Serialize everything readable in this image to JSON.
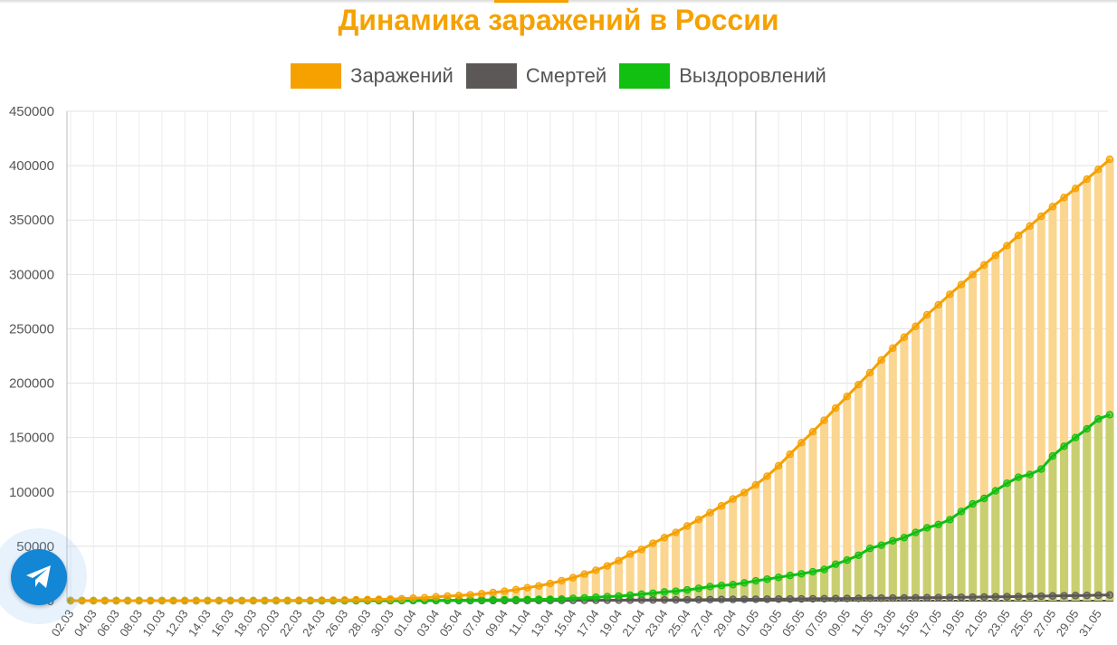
{
  "chart_data": {
    "type": "bar+line",
    "title": "Динамика заражений в России",
    "title_color": "#f5a100",
    "start": "02.03",
    "end": "31.05",
    "ylim": [
      0,
      450000
    ],
    "y_ticks": [
      "0",
      "50000",
      "100000",
      "150000",
      "200000",
      "250000",
      "300000",
      "350000",
      "400000",
      "450000"
    ],
    "x_tick_labels": [
      "02.03",
      "04.03",
      "06.03",
      "08.03",
      "10.03",
      "12.03",
      "14.03",
      "16.03",
      "18.03",
      "20.03",
      "22.03",
      "24.03",
      "26.03",
      "28.03",
      "30.03",
      "01.04",
      "03.04",
      "05.04",
      "07.04",
      "09.04",
      "11.04",
      "13.04",
      "15.04",
      "17.04",
      "19.04",
      "21.04",
      "23.04",
      "25.04",
      "27.04",
      "29.04",
      "01.05",
      "03.05",
      "05.05",
      "07.05",
      "09.05",
      "11.05",
      "13.05",
      "15.05",
      "17.05",
      "19.05",
      "21.05",
      "23.05",
      "25.05",
      "27.05",
      "29.05",
      "31.05"
    ],
    "grid": true,
    "legend_position": "top-center",
    "series": [
      {
        "name": "Заражений",
        "color": "#f5a100",
        "bar_fill": "#fbd690",
        "values": [
          3,
          3,
          4,
          4,
          7,
          10,
          13,
          17,
          17,
          20,
          28,
          34,
          45,
          59,
          63,
          93,
          114,
          147,
          199,
          253,
          306,
          367,
          438,
          495,
          658,
          840,
          1036,
          1264,
          1534,
          1836,
          2337,
          2777,
          3548,
          4149,
          4731,
          5389,
          6343,
          7497,
          8672,
          10131,
          11917,
          13584,
          15770,
          18328,
          21102,
          24490,
          27938,
          32008,
          36793,
          42853,
          47121,
          52763,
          57999,
          62773,
          68622,
          74588,
          80949,
          87147,
          93558,
          99399,
          106498,
          114431,
          124054,
          134687,
          145268,
          155370,
          165929,
          177160,
          187859,
          198676,
          209688,
          221344,
          232243,
          242271,
          252245,
          262843,
          272043,
          281752,
          290678,
          299941,
          308705,
          317554,
          326448,
          335882,
          344481,
          353427,
          362342,
          370680,
          379051,
          387623,
          396575,
          405843
        ],
        "show_bars": true
      },
      {
        "name": "Смертей",
        "color": "#5c5858",
        "values": [
          0,
          0,
          0,
          0,
          0,
          0,
          0,
          0,
          0,
          0,
          0,
          0,
          0,
          0,
          0,
          0,
          0,
          0,
          1,
          1,
          1,
          1,
          2,
          3,
          4,
          8,
          9,
          17,
          24,
          30,
          34,
          43,
          45,
          47,
          58,
          63,
          76,
          94,
          106,
          130,
          148,
          170,
          198,
          232,
          273,
          313,
          361,
          405,
          456,
          513,
          555,
          615,
          681,
          747,
          794,
          867,
          972,
          1073,
          1169,
          1222,
          1280,
          1356,
          1451,
          1537,
          1625,
          1723,
          1827,
          1915,
          2009,
          2116,
          2212,
          2305,
          2418,
          2537,
          2631,
          2722,
          2837,
          2972,
          3099,
          3249,
          3388,
          3541,
          3633,
          3807,
          3968,
          4142,
          4374,
          4555,
          4693,
          4855,
          5037,
          5215
        ]
      },
      {
        "name": "Выздоровлений",
        "color": "#11c011",
        "bar_fill": "#c9cf70",
        "values": [
          0,
          0,
          0,
          0,
          0,
          0,
          1,
          2,
          2,
          2,
          3,
          3,
          3,
          3,
          4,
          5,
          5,
          5,
          8,
          12,
          16,
          22,
          26,
          29,
          38,
          49,
          64,
          84,
          105,
          129,
          167,
          234,
          266,
          307,
          391,
          461,
          611,
          767,
          832,
          870,
          1082,
          1249,
          1319,
          1510,
          2141,
          2561,
          3117,
          3716,
          4199,
          5043,
          5963,
          6843,
          8010,
          8713,
          9882,
          11346,
          12931,
          13943,
          14766,
          16347,
          18253,
          19759,
          21419,
          23212,
          24727,
          26578,
          28702,
          33561,
          37321,
          41771,
          48107,
          51000,
          55000,
          58000,
          62700,
          67000,
          70000,
          74500,
          82000,
          89000,
          94000,
          101000,
          108000,
          113500,
          116000,
          121000,
          133000,
          142000,
          150000,
          158000,
          167000,
          171000
        ],
        "show_bars": true
      }
    ]
  }
}
